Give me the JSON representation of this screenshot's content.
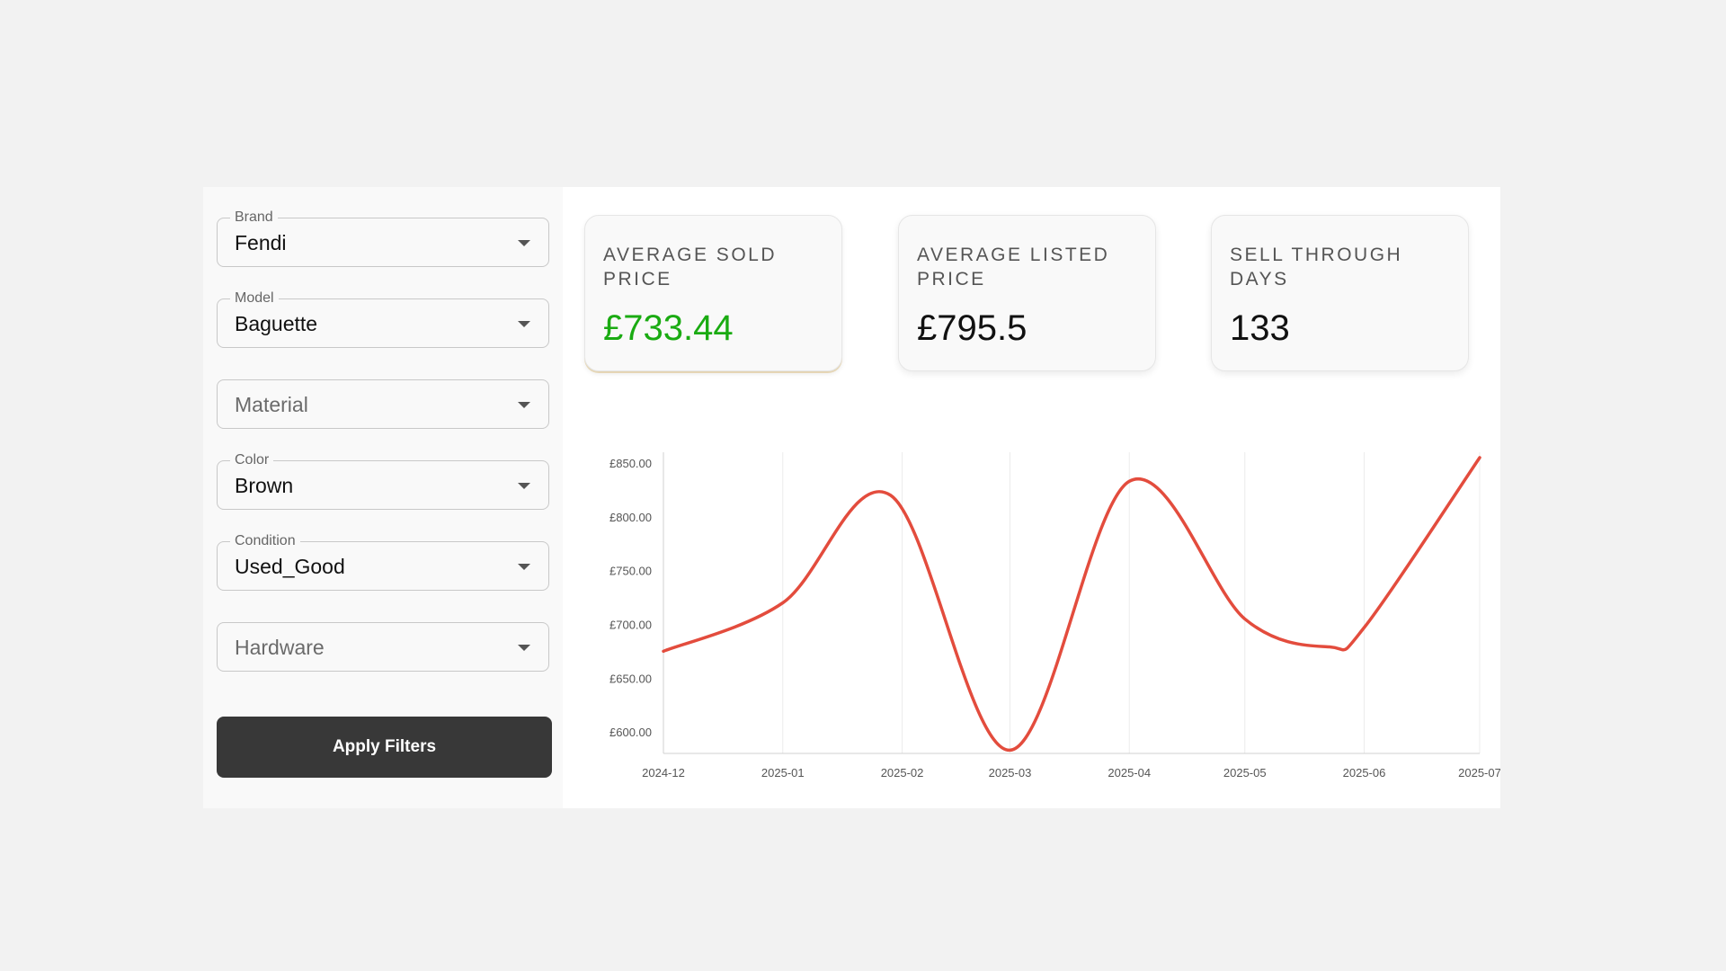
{
  "filters": {
    "brand": {
      "label": "Brand",
      "value": "Fendi"
    },
    "model": {
      "label": "Model",
      "value": "Baguette"
    },
    "material": {
      "placeholder": "Material"
    },
    "color": {
      "label": "Color",
      "value": "Brown"
    },
    "condition": {
      "label": "Condition",
      "value": "Used_Good"
    },
    "hardware": {
      "placeholder": "Hardware"
    },
    "apply_label": "Apply Filters"
  },
  "stats": {
    "avg_sold": {
      "title": "AVERAGE SOLD PRICE",
      "value": "£733.44"
    },
    "avg_listed": {
      "title": "AVERAGE LISTED PRICE",
      "value": "£795.5"
    },
    "sell_through": {
      "title": "SELL THROUGH DAYS",
      "value": "133"
    }
  },
  "colors": {
    "accent_green": "#1aab12",
    "line": "#e34c3d",
    "button": "#383838"
  },
  "chart_data": {
    "type": "line",
    "x_tick_labels": [
      "2024-12",
      "2025-01",
      "2025-02",
      "2025-03",
      "2025-04",
      "2025-05",
      "2025-06",
      "2025-07"
    ],
    "y_tick_labels": [
      "£850.00",
      "£800.00",
      "£750.00",
      "£700.00",
      "£650.00",
      "£600.00"
    ],
    "y_ticks": [
      850,
      800,
      750,
      700,
      650,
      600
    ],
    "ylim": [
      580,
      860
    ],
    "grid": true,
    "series": [
      {
        "color": "#e34c3d",
        "points": [
          {
            "x": "2024-12-01",
            "y": 675
          },
          {
            "x": "2025-01-01",
            "y": 720
          },
          {
            "x": "2025-01-29",
            "y": 820
          },
          {
            "x": "2025-03-01",
            "y": 583
          },
          {
            "x": "2025-04-01",
            "y": 833
          },
          {
            "x": "2025-05-01",
            "y": 705
          },
          {
            "x": "2025-05-23",
            "y": 679
          },
          {
            "x": "2025-06-01",
            "y": 697
          },
          {
            "x": "2025-07-01",
            "y": 855
          }
        ]
      }
    ]
  }
}
